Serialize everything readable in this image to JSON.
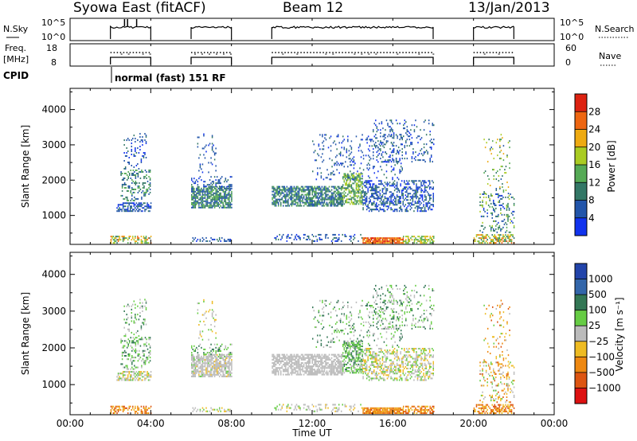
{
  "header": {
    "station": "Syowa East (fitACF)",
    "beam": "Beam 12",
    "date": "13/Jan/2013"
  },
  "nsky_panel": {
    "left_label": "N.Sky",
    "left_ticks": [
      "10^5",
      "10^0"
    ],
    "right_label": "N.Search",
    "right_ticks": [
      "10^5",
      "10^0"
    ]
  },
  "freq_panel": {
    "left_label_line1": "Freq.",
    "left_label_line2": "[MHz]",
    "left_ticks": [
      "18",
      "8"
    ],
    "right_label": "Nave",
    "right_ticks": [
      "60",
      "0"
    ]
  },
  "cpid": {
    "label": "CPID",
    "mode_text": "normal (fast) 151 RF"
  },
  "x_axis": {
    "title": "Time UT",
    "ticks": [
      "00:00",
      "04:00",
      "08:00",
      "12:00",
      "16:00",
      "20:00",
      "00:00"
    ],
    "range_hours": [
      0,
      24
    ]
  },
  "chart_data": [
    {
      "type": "heatmap",
      "name": "power",
      "ylabel": "Slant Range [km]",
      "yticks": [
        "1000",
        "2000",
        "3000",
        "4000"
      ],
      "ylim": [
        180,
        4600
      ],
      "x_unit": "hours UT",
      "colorbar_label": "Power [dB]",
      "colorbar_ticks": [
        "4",
        "8",
        "12",
        "16",
        "20",
        "24",
        "28"
      ],
      "colorbar_range": [
        0,
        32
      ],
      "colors": [
        "#1133ee",
        "#2255aa",
        "#337766",
        "#55aa55",
        "#aacc22",
        "#eeaa11",
        "#ee6611",
        "#dd2211"
      ],
      "scan_intervals": [
        [
          2.0,
          4.0
        ],
        [
          6.0,
          8.0
        ],
        [
          10.0,
          18.0
        ],
        [
          20.0,
          22.0
        ]
      ]
    },
    {
      "type": "heatmap",
      "name": "velocity",
      "ylabel": "Slant Range [km]",
      "yticks": [
        "1000",
        "2000",
        "3000",
        "4000"
      ],
      "ylim": [
        180,
        4600
      ],
      "x_unit": "hours UT",
      "colorbar_label": "Velocity [m s⁻¹]",
      "colorbar_ticks": [
        "1000",
        "500",
        "100",
        "25",
        "−25",
        "−100",
        "−500",
        "−1000"
      ],
      "colors": [
        "#2244aa",
        "#3366aa",
        "#337755",
        "#66cc44",
        "#bbbbbb",
        "#eebb22",
        "#ee8811",
        "#dd5511",
        "#dd1111"
      ],
      "scan_intervals": [
        [
          2.0,
          4.0
        ],
        [
          6.0,
          8.0
        ],
        [
          10.0,
          18.0
        ],
        [
          20.0,
          22.0
        ]
      ]
    }
  ]
}
